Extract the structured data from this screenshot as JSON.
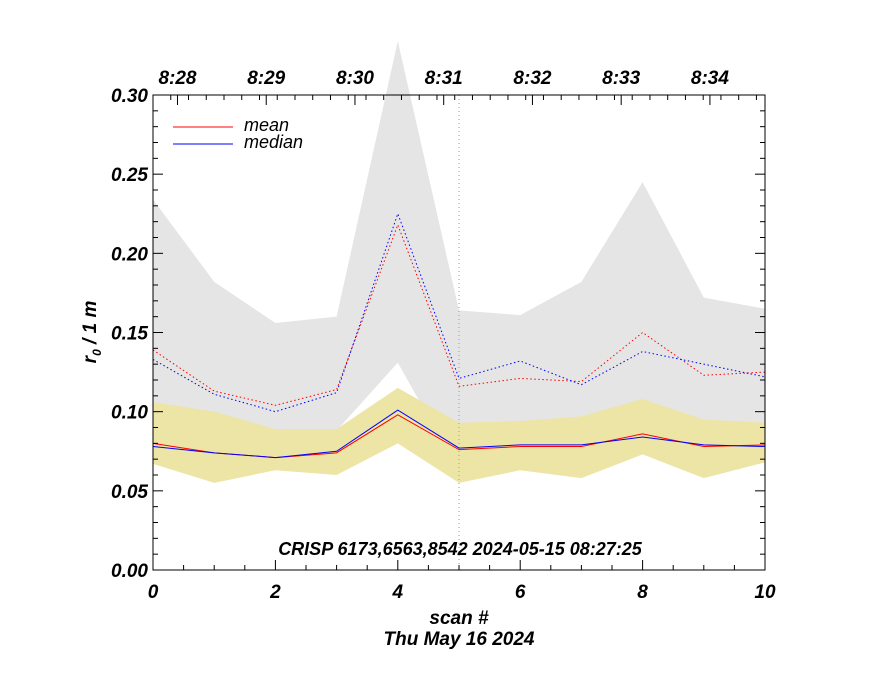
{
  "chart_data": {
    "type": "line",
    "x": [
      0,
      1,
      2,
      3,
      4,
      5,
      6,
      7,
      8,
      9,
      10
    ],
    "xlim": [
      0,
      10
    ],
    "ylim": [
      0,
      0.3
    ],
    "xlabel": "scan #",
    "date_label": "Thu May 16 2024",
    "ylabel_main": "r",
    "ylabel_sub": "0",
    "ylabel_rest": " / 1 m",
    "x_ticks": [
      0,
      2,
      4,
      6,
      8,
      10
    ],
    "x_tick_labels": [
      "0",
      "2",
      "4",
      "6",
      "8",
      "10"
    ],
    "y_ticks": [
      0.0,
      0.05,
      0.1,
      0.15,
      0.2,
      0.25,
      0.3
    ],
    "y_tick_labels": [
      "0.00",
      "0.05",
      "0.10",
      "0.15",
      "0.20",
      "0.25",
      "0.30"
    ],
    "top_axis": {
      "positions": [
        0.4,
        1.85,
        3.3,
        4.75,
        6.2,
        7.65,
        9.1
      ],
      "labels": [
        "8:28",
        "8:29",
        "8:30",
        "8:31",
        "8:32",
        "8:33",
        "8:34"
      ]
    },
    "vline_x": 5,
    "series": [
      {
        "name": "mean",
        "style": "solid",
        "color": "#ff0000",
        "values": [
          0.08,
          0.074,
          0.071,
          0.074,
          0.098,
          0.076,
          0.078,
          0.078,
          0.086,
          0.078,
          0.079
        ]
      },
      {
        "name": "median",
        "style": "solid",
        "color": "#0000ff",
        "values": [
          0.078,
          0.074,
          0.071,
          0.075,
          0.101,
          0.077,
          0.079,
          0.079,
          0.084,
          0.079,
          0.078
        ]
      },
      {
        "name": "mean_upper",
        "style": "dotted",
        "color": "#ff0000",
        "values": [
          0.139,
          0.113,
          0.104,
          0.114,
          0.218,
          0.116,
          0.121,
          0.119,
          0.15,
          0.123,
          0.125
        ]
      },
      {
        "name": "median_upper",
        "style": "dotted",
        "color": "#0000ff",
        "values": [
          0.133,
          0.111,
          0.1,
          0.112,
          0.225,
          0.121,
          0.132,
          0.117,
          0.138,
          0.13,
          0.122
        ]
      }
    ],
    "bands": [
      {
        "name": "upper_spread",
        "color": "#e5e5e5",
        "lower": [
          0.104,
          0.09,
          0.088,
          0.088,
          0.131,
          0.062,
          0.076,
          0.065,
          0.087,
          0.066,
          0.079
        ],
        "upper": [
          0.234,
          0.182,
          0.156,
          0.16,
          0.334,
          0.164,
          0.161,
          0.182,
          0.245,
          0.172,
          0.165
        ]
      },
      {
        "name": "lower_spread",
        "color": "#ede5a5",
        "lower": [
          0.067,
          0.055,
          0.063,
          0.06,
          0.08,
          0.055,
          0.063,
          0.058,
          0.073,
          0.058,
          0.068
        ],
        "upper": [
          0.106,
          0.1,
          0.089,
          0.089,
          0.115,
          0.093,
          0.094,
          0.097,
          0.108,
          0.095,
          0.093
        ]
      }
    ],
    "legend": [
      {
        "label": "mean",
        "color": "#ff0000"
      },
      {
        "label": "median",
        "color": "#0000ff"
      }
    ],
    "legend_position": "top-left",
    "annotation": "CRISP 6173,6563,8542 2024-05-15 08:27:25"
  }
}
